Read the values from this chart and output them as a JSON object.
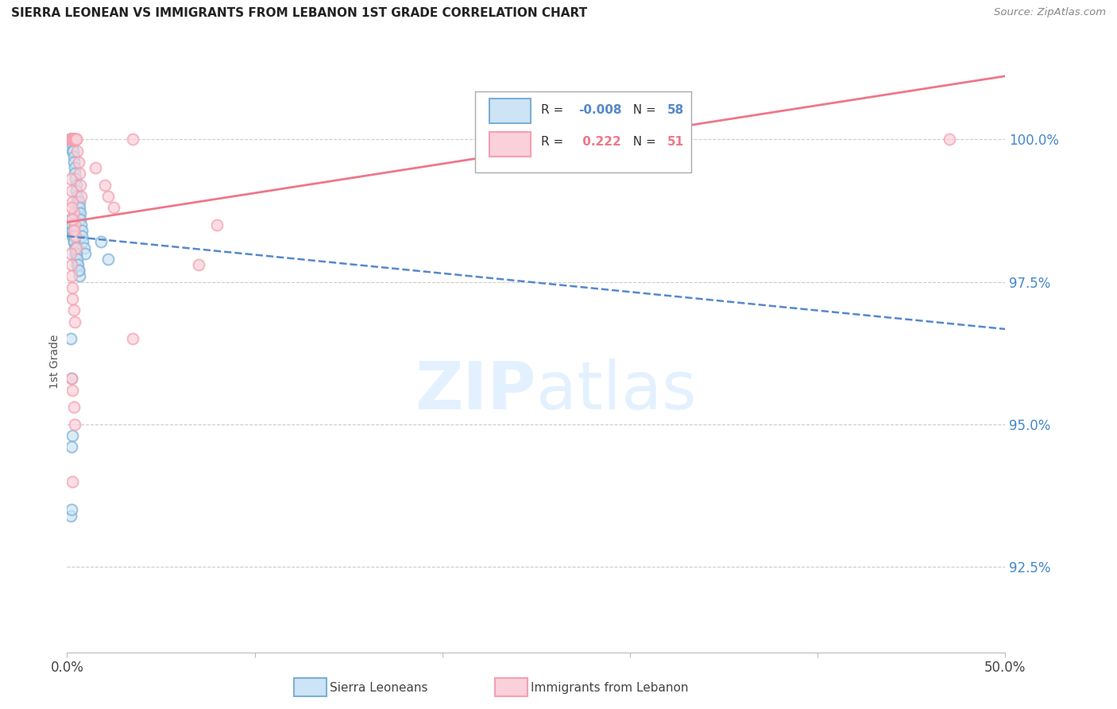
{
  "title": "SIERRA LEONEAN VS IMMIGRANTS FROM LEBANON 1ST GRADE CORRELATION CHART",
  "source": "Source: ZipAtlas.com",
  "ylabel": "1st Grade",
  "yticks": [
    92.5,
    95.0,
    97.5,
    100.0
  ],
  "ytick_labels": [
    "92.5%",
    "95.0%",
    "97.5%",
    "100.0%"
  ],
  "xlim": [
    0.0,
    50.0
  ],
  "ylim": [
    91.0,
    101.2
  ],
  "blue_R": -0.008,
  "blue_N": 58,
  "pink_R": 0.222,
  "pink_N": 51,
  "blue_color": "#7BAFD4",
  "pink_color": "#F4A0B0",
  "blue_edge": "#5588BB",
  "pink_edge": "#DD7788",
  "blue_label": "Sierra Leoneans",
  "pink_label": "Immigrants from Lebanon",
  "blue_line_color": "#5588CC",
  "pink_line_color": "#EE7788",
  "blue_scatter_x": [
    0.15,
    0.18,
    0.2,
    0.22,
    0.25,
    0.28,
    0.3,
    0.32,
    0.35,
    0.38,
    0.4,
    0.42,
    0.45,
    0.48,
    0.5,
    0.52,
    0.55,
    0.58,
    0.6,
    0.62,
    0.65,
    0.68,
    0.7,
    0.72,
    0.75,
    0.78,
    0.8,
    0.85,
    0.9,
    0.95,
    0.2,
    0.25,
    0.3,
    0.35,
    0.4,
    0.45,
    0.5,
    0.55,
    0.6,
    0.65,
    0.18,
    0.22,
    0.28,
    0.33,
    0.38,
    0.43,
    0.48,
    0.53,
    0.58,
    0.63,
    0.2,
    0.25,
    0.3,
    1.8,
    2.2,
    0.2,
    0.22,
    0.25
  ],
  "blue_scatter_y": [
    100.0,
    100.0,
    100.0,
    100.0,
    100.0,
    99.9,
    99.8,
    99.8,
    99.7,
    99.6,
    99.5,
    99.4,
    99.3,
    99.2,
    99.1,
    99.0,
    98.9,
    98.8,
    98.7,
    98.6,
    98.9,
    98.8,
    98.7,
    98.6,
    98.5,
    98.4,
    98.3,
    98.2,
    98.1,
    98.0,
    98.5,
    98.4,
    98.3,
    98.2,
    98.1,
    98.0,
    97.9,
    97.8,
    97.7,
    97.6,
    98.6,
    98.5,
    98.4,
    98.3,
    98.2,
    98.1,
    98.0,
    97.9,
    97.8,
    97.7,
    96.5,
    95.8,
    94.8,
    98.2,
    97.9,
    93.4,
    93.5,
    94.6
  ],
  "pink_scatter_x": [
    0.15,
    0.18,
    0.2,
    0.22,
    0.25,
    0.28,
    0.3,
    0.32,
    0.35,
    0.38,
    0.4,
    0.42,
    0.45,
    0.48,
    0.5,
    0.55,
    0.6,
    0.65,
    0.7,
    0.75,
    0.2,
    0.25,
    0.3,
    0.35,
    0.4,
    0.45,
    0.5,
    0.25,
    0.3,
    0.35,
    1.5,
    2.0,
    2.5,
    3.5,
    0.2,
    0.22,
    0.25,
    0.28,
    0.3,
    0.35,
    0.4,
    2.2,
    0.25,
    0.3,
    0.35,
    0.4,
    3.5,
    47.0,
    7.0,
    8.0,
    0.3
  ],
  "pink_scatter_y": [
    100.0,
    100.0,
    100.0,
    100.0,
    100.0,
    100.0,
    100.0,
    100.0,
    100.0,
    100.0,
    100.0,
    100.0,
    100.0,
    100.0,
    100.0,
    99.8,
    99.6,
    99.4,
    99.2,
    99.0,
    99.3,
    99.1,
    98.9,
    98.7,
    98.5,
    98.3,
    98.1,
    98.8,
    98.6,
    98.4,
    99.5,
    99.2,
    98.8,
    100.0,
    98.0,
    97.8,
    97.6,
    97.4,
    97.2,
    97.0,
    96.8,
    99.0,
    95.8,
    95.6,
    95.3,
    95.0,
    96.5,
    100.0,
    97.8,
    98.5,
    94.0
  ]
}
